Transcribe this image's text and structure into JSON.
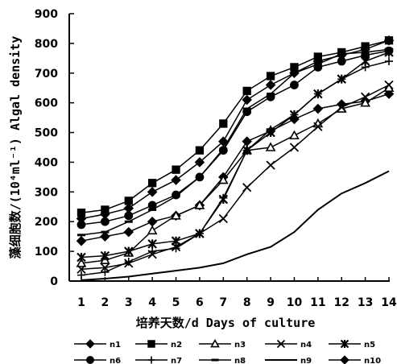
{
  "chart_data": {
    "type": "line",
    "xlabel": "培养天数/d  Days of culture",
    "ylabel": "藻细胞数/(10⁴ml⁻¹) Algal density",
    "ylim": [
      0,
      900
    ],
    "xlim": [
      1,
      14
    ],
    "grid": false,
    "legend_placement": "bottom",
    "x": [
      1,
      2,
      3,
      4,
      5,
      6,
      7,
      8,
      9,
      10,
      11,
      12,
      13,
      14
    ],
    "y_ticks": [
      0,
      100,
      200,
      300,
      400,
      500,
      600,
      700,
      800,
      900
    ],
    "series": [
      {
        "name": "n1",
        "marker": "diamond",
        "values": [
          135,
          150,
          165,
          200,
          220,
          255,
          350,
          470,
          505,
          545,
          580,
          595,
          605,
          630
        ]
      },
      {
        "name": "n2",
        "marker": "square",
        "values": [
          230,
          240,
          270,
          330,
          375,
          440,
          530,
          640,
          690,
          720,
          755,
          770,
          790,
          810
        ]
      },
      {
        "name": "n3",
        "marker": "triangle",
        "values": [
          60,
          70,
          95,
          170,
          220,
          255,
          340,
          440,
          450,
          490,
          530,
          580,
          600,
          650
        ]
      },
      {
        "name": "n4",
        "marker": "x",
        "values": [
          40,
          45,
          60,
          90,
          115,
          160,
          210,
          315,
          390,
          450,
          520,
          585,
          620,
          660
        ]
      },
      {
        "name": "n5",
        "marker": "star",
        "values": [
          80,
          85,
          100,
          125,
          135,
          160,
          275,
          440,
          500,
          560,
          630,
          680,
          740,
          770
        ]
      },
      {
        "name": "n6",
        "marker": "circle",
        "values": [
          190,
          200,
          220,
          255,
          290,
          350,
          440,
          570,
          620,
          660,
          720,
          740,
          760,
          775
        ]
      },
      {
        "name": "n7",
        "marker": "plus",
        "values": [
          20,
          30,
          65,
          100,
          110,
          160,
          280,
          440,
          510,
          560,
          630,
          680,
          720,
          740
        ]
      },
      {
        "name": "n8",
        "marker": "dash",
        "values": [
          155,
          165,
          200,
          240,
          285,
          350,
          445,
          580,
          630,
          700,
          730,
          765,
          770,
          780
        ]
      },
      {
        "name": "n9",
        "marker": "none",
        "values": [
          3,
          8,
          15,
          25,
          35,
          45,
          60,
          90,
          115,
          165,
          240,
          295,
          330,
          370
        ]
      },
      {
        "name": "n10",
        "marker": "diamond",
        "values": [
          210,
          225,
          245,
          300,
          340,
          400,
          470,
          610,
          660,
          700,
          740,
          760,
          780,
          810
        ]
      }
    ]
  }
}
